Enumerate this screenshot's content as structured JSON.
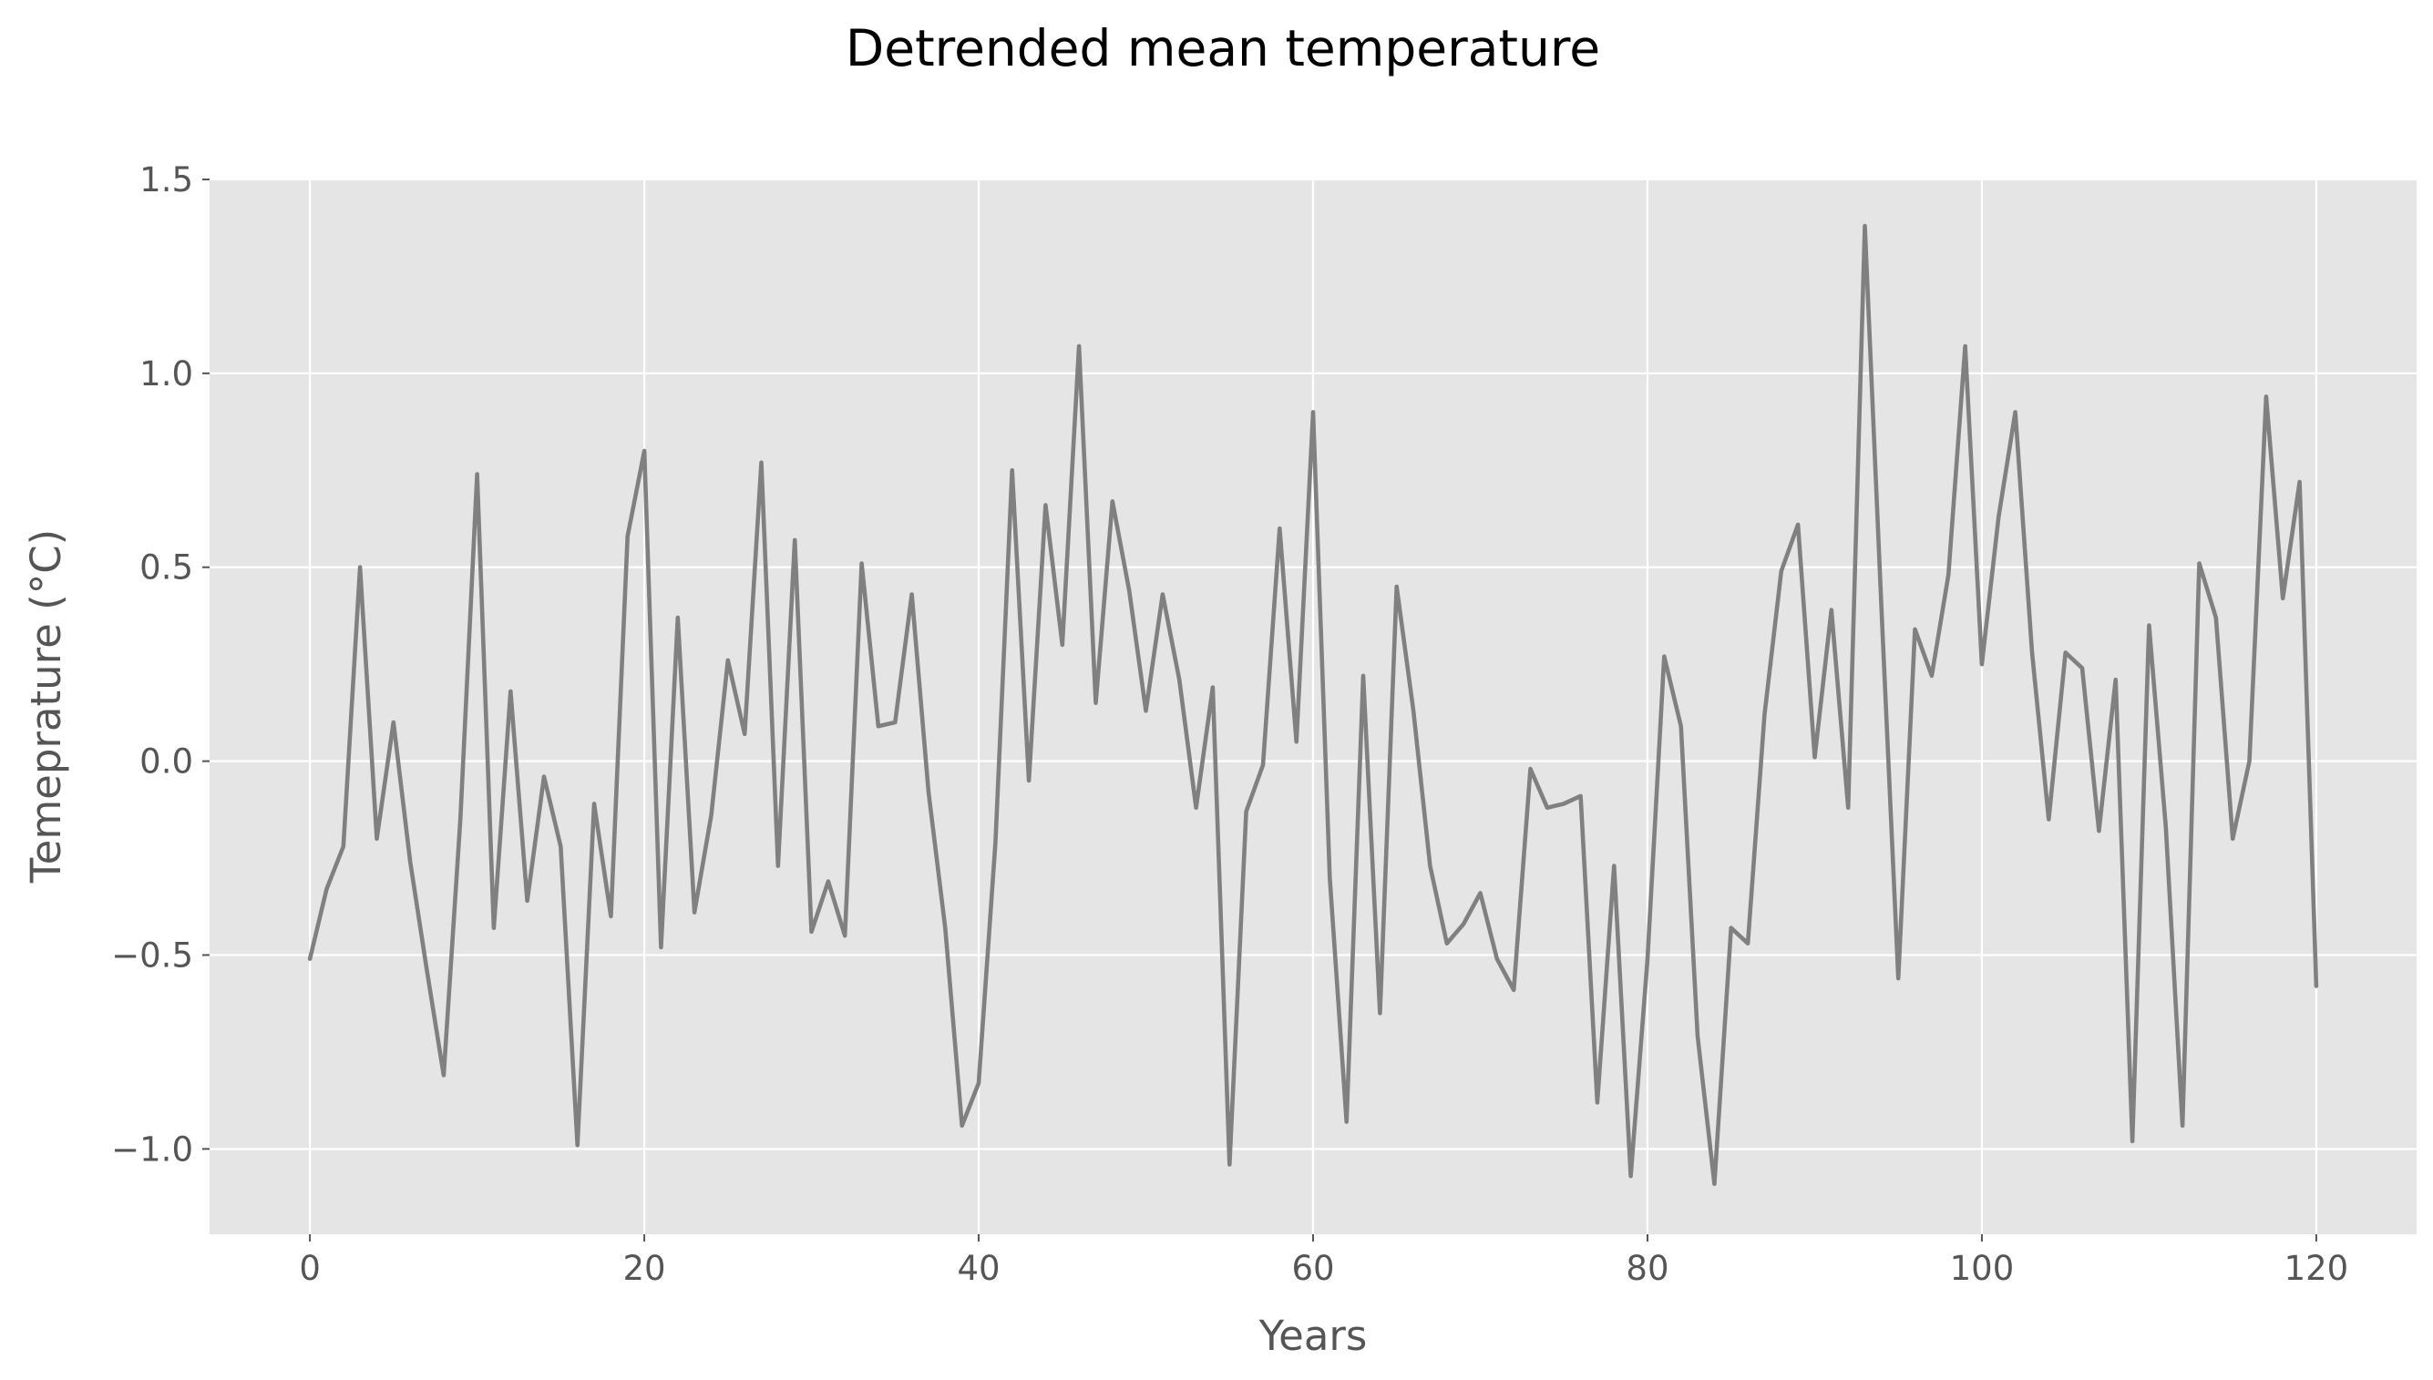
{
  "chart_data": {
    "type": "line",
    "title": "Detrended mean temperature",
    "xlabel": "Years",
    "ylabel": "Temeprature (°C)",
    "xlim": [
      -6,
      126
    ],
    "ylim": [
      -1.22,
      1.5
    ],
    "x_ticks": [
      0,
      20,
      40,
      60,
      80,
      100,
      120
    ],
    "x_tick_labels": [
      "0",
      "20",
      "40",
      "60",
      "80",
      "100",
      "120"
    ],
    "y_ticks": [
      1.5,
      1.0,
      0.5,
      0.0,
      -0.5,
      -1.0
    ],
    "y_tick_labels": [
      "1.5",
      "1.0",
      "0.5",
      "0.0",
      "−0.5",
      "−1.0"
    ],
    "grid": true,
    "legend": "none",
    "colors": {
      "background": "#e5e5e5",
      "line": "#808080",
      "grid": "#ffffff"
    },
    "series": [
      {
        "x": [
          0,
          1,
          2,
          3,
          4,
          5,
          6,
          7,
          8,
          9,
          10,
          11,
          12,
          13,
          14,
          15,
          16,
          17,
          18,
          19,
          20,
          21,
          22,
          23,
          24,
          25,
          26,
          27,
          28,
          29,
          30,
          31,
          32,
          33,
          34,
          35,
          36,
          37,
          38,
          39,
          40,
          41,
          42,
          43,
          44,
          45,
          46,
          47,
          48,
          49,
          50,
          51,
          52,
          53,
          54,
          55,
          56,
          57,
          58,
          59,
          60,
          61,
          62,
          63,
          64,
          65,
          66,
          67,
          68,
          69,
          70,
          71,
          72,
          73,
          74,
          75,
          76,
          77,
          78,
          79,
          80,
          81,
          82,
          83,
          84,
          85,
          86,
          87,
          88,
          89,
          90,
          91,
          92,
          93,
          94,
          95,
          96,
          97,
          98,
          99,
          100,
          101,
          102,
          103,
          104,
          105,
          106,
          107,
          108,
          109,
          110,
          111,
          112,
          113,
          114,
          115,
          116,
          117,
          118,
          119,
          120
        ],
        "values": [
          -0.51,
          -0.33,
          -0.22,
          0.5,
          -0.2,
          0.1,
          -0.26,
          -0.54,
          -0.81,
          -0.15,
          0.74,
          -0.43,
          0.18,
          -0.36,
          -0.04,
          -0.22,
          -0.99,
          -0.11,
          -0.4,
          0.58,
          0.8,
          -0.48,
          0.37,
          -0.39,
          -0.14,
          0.26,
          0.07,
          0.77,
          -0.27,
          0.57,
          -0.44,
          -0.31,
          -0.45,
          0.51,
          0.09,
          0.1,
          0.43,
          -0.08,
          -0.43,
          -0.94,
          -0.83,
          -0.21,
          0.75,
          -0.05,
          0.66,
          0.3,
          1.07,
          0.15,
          0.67,
          0.44,
          0.13,
          0.43,
          0.21,
          -0.12,
          0.19,
          -1.04,
          -0.13,
          -0.01,
          0.6,
          0.05,
          0.9,
          -0.3,
          -0.93,
          0.22,
          -0.65,
          0.45,
          0.13,
          -0.27,
          -0.47,
          -0.42,
          -0.34,
          -0.51,
          -0.59,
          -0.02,
          -0.12,
          -0.11,
          -0.09,
          -0.88,
          -0.27,
          -1.07,
          -0.51,
          0.27,
          0.09,
          -0.71,
          -1.09,
          -0.43,
          -0.47,
          0.12,
          0.49,
          0.61,
          0.01,
          0.39,
          -0.12,
          1.38,
          0.39,
          -0.56,
          0.34,
          0.22,
          0.48,
          1.07,
          0.25,
          0.63,
          0.9,
          0.28,
          -0.15,
          0.28,
          0.24,
          -0.18,
          0.21,
          -0.98,
          0.35,
          -0.17,
          -0.94,
          0.51,
          0.37,
          -0.2,
          0.0,
          0.94,
          0.42,
          0.72,
          -0.58
        ]
      }
    ]
  }
}
